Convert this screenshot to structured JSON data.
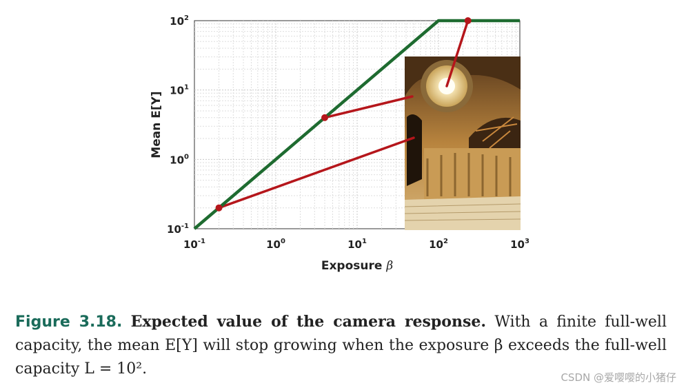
{
  "chart_data": {
    "type": "line",
    "xscale": "log",
    "yscale": "log",
    "xlim": [
      0.1,
      1000
    ],
    "ylim": [
      0.1,
      100
    ],
    "xlabel": "Exposure",
    "xlabel_symbol": "β",
    "ylabel": "Mean E[Y]",
    "grid": true,
    "x_ticks": [
      {
        "base": "10",
        "exp": "-1",
        "value": 0.1
      },
      {
        "base": "10",
        "exp": "0",
        "value": 1
      },
      {
        "base": "10",
        "exp": "1",
        "value": 10
      },
      {
        "base": "10",
        "exp": "2",
        "value": 100
      },
      {
        "base": "10",
        "exp": "3",
        "value": 1000
      }
    ],
    "y_ticks": [
      {
        "base": "10",
        "exp": "-1",
        "value": 0.1
      },
      {
        "base": "10",
        "exp": "0",
        "value": 1
      },
      {
        "base": "10",
        "exp": "1",
        "value": 10
      },
      {
        "base": "10",
        "exp": "2",
        "value": 100
      }
    ],
    "series": [
      {
        "color": "#1e6b30",
        "x": [
          0.1,
          100,
          1000
        ],
        "y": [
          0.1,
          100,
          100
        ]
      }
    ],
    "markers": [
      {
        "x": 0.2,
        "y": 0.2,
        "color": "#b5161b"
      },
      {
        "x": 4,
        "y": 4,
        "color": "#b5161b"
      },
      {
        "x": 230,
        "y": 100,
        "color": "#b5161b"
      }
    ],
    "pointer_lines": [
      {
        "from": {
          "x": 0.2,
          "y": 0.2
        },
        "to_photo": "lower-left region"
      },
      {
        "from": {
          "x": 4,
          "y": 4
        },
        "to_photo": "middle-left region"
      },
      {
        "from": {
          "x": 230,
          "y": 100
        },
        "to_photo": "bright dome"
      }
    ],
    "inset_image": "cathedral-interior-photo"
  },
  "caption": {
    "figure_number": "Figure 3.18.",
    "title": "Expected value of the camera response.",
    "text": "With a finite full-well capacity, the mean E[Y] will stop growing when the exposure β exceeds the full-well capacity L = 10²."
  },
  "watermark": "CSDN @爱嘤嘤的小猪仔"
}
